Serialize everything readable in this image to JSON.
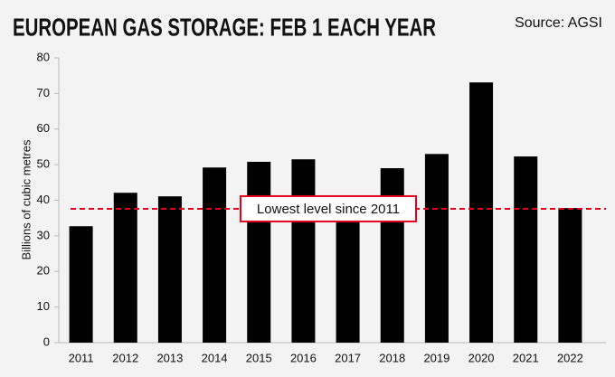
{
  "chart_data": {
    "type": "bar",
    "title": "EUROPEAN GAS STORAGE: FEB 1 EACH YEAR",
    "source": "Source: AGSI",
    "y_label": "Billions of cubic metres",
    "categories": [
      "2011",
      "2012",
      "2013",
      "2014",
      "2015",
      "2016",
      "2017",
      "2018",
      "2019",
      "2020",
      "2021",
      "2022"
    ],
    "values": [
      32.7,
      42.1,
      41.1,
      49.2,
      50.8,
      51.5,
      34.5,
      49,
      53,
      73.1,
      52.3,
      37.8
    ],
    "color": "#000000",
    "ylim": [
      0,
      80
    ],
    "yticks": [
      0,
      10,
      20,
      30,
      40,
      50,
      60,
      70,
      80
    ],
    "reference_line": {
      "value": 37.6,
      "color": "#e4001b",
      "label": "Lowest level since 2011"
    }
  }
}
